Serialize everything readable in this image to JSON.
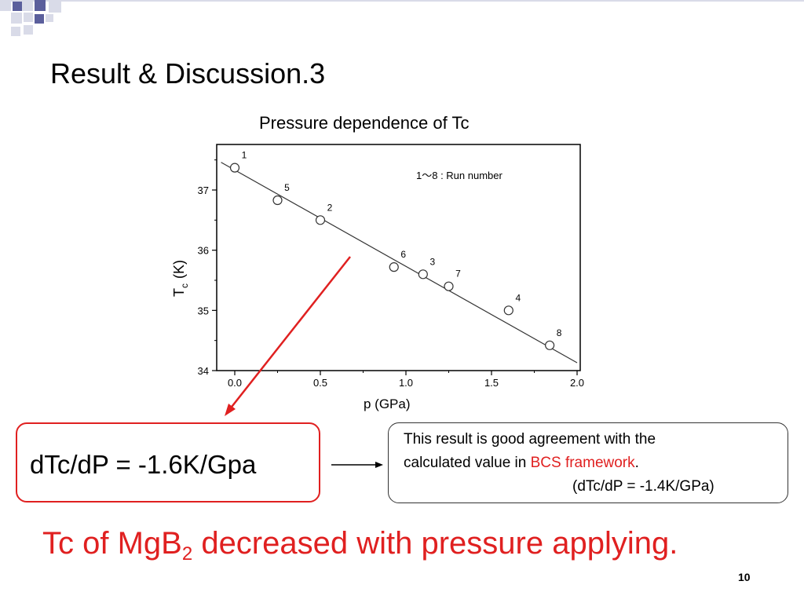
{
  "slide": {
    "title": "Result & Discussion.3",
    "page_number": "10"
  },
  "colors": {
    "accent_red": "#e02020",
    "decor_blue": "#5b5f9c",
    "decor_light": "#d9dbe8"
  },
  "chart_data": {
    "type": "scatter",
    "title": "Pressure dependence of Tc",
    "xlabel": "p (GPa)",
    "ylabel_main": "T",
    "ylabel_sub": "c",
    "ylabel_unit": "(K)",
    "xlim": [
      0.0,
      2.0
    ],
    "ylim": [
      34,
      37.75
    ],
    "x_ticks": [
      "0.0",
      "0.5",
      "1.0",
      "1.5",
      "2.0"
    ],
    "y_ticks": [
      "34",
      "35",
      "36",
      "37"
    ],
    "annotation": "1～8  : Run number",
    "points": [
      {
        "x": 0.0,
        "y": 37.37,
        "label": "1"
      },
      {
        "x": 0.25,
        "y": 36.83,
        "label": "5"
      },
      {
        "x": 0.5,
        "y": 36.5,
        "label": "2"
      },
      {
        "x": 0.93,
        "y": 35.72,
        "label": "6"
      },
      {
        "x": 1.1,
        "y": 35.6,
        "label": "3"
      },
      {
        "x": 1.25,
        "y": 35.4,
        "label": "7"
      },
      {
        "x": 1.6,
        "y": 35.0,
        "label": "4"
      },
      {
        "x": 1.84,
        "y": 34.42,
        "label": "8"
      }
    ],
    "fit_line": {
      "x": [
        -0.08,
        2.0
      ],
      "y": [
        37.46,
        34.13
      ]
    },
    "grid": false
  },
  "result": {
    "text": "dTc/dP = -1.6K/Gpa"
  },
  "note": {
    "line1": "This result is good agreement with the",
    "line2_pre": "calculated value in ",
    "line2_highlight": "BCS framework",
    "line2_post": ".",
    "line3": "(dTc/dP = -1.4K/GPa)"
  },
  "conclusion": {
    "pre": "Tc of MgB",
    "sub": "2",
    "post": " decreased with pressure applying."
  }
}
